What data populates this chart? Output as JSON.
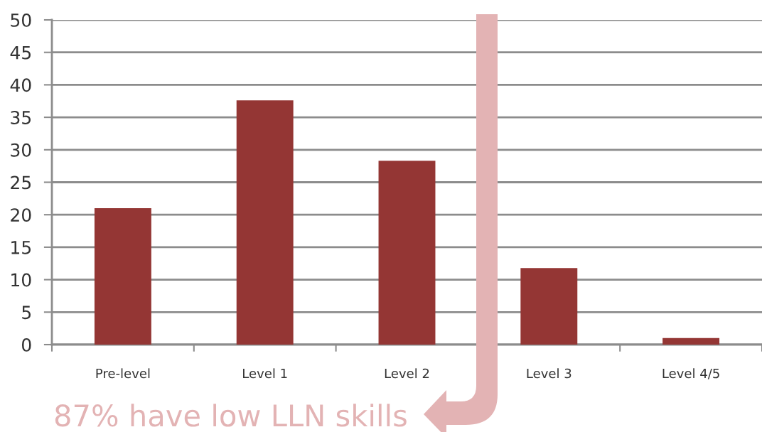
{
  "chart_data": {
    "type": "bar",
    "categories": [
      "Pre-level",
      "Level 1",
      "Level 2",
      "Level 3",
      "Level 4/5"
    ],
    "values": [
      21,
      37.6,
      28.3,
      11.8,
      1
    ],
    "color": "#943634",
    "ylim": [
      0,
      50
    ],
    "yticks": [
      0,
      5,
      10,
      15,
      20,
      25,
      30,
      35,
      40,
      45,
      50
    ],
    "grid": "y",
    "annotations": [
      "87% have low LLN skills"
    ]
  }
}
